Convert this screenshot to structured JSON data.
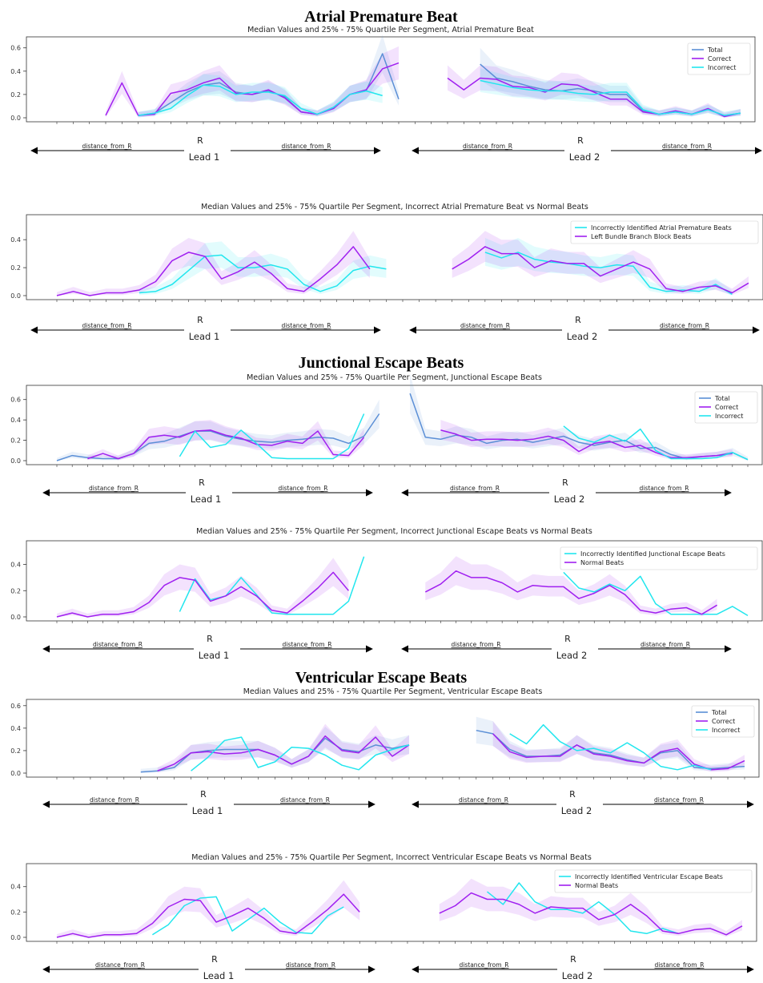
{
  "section_titles": [
    "Atrial Premature Beat",
    "Junctional Escape Beats",
    "Ventricular Escape Beats"
  ],
  "annotation_labels": {
    "r": "R",
    "distance": "distance_from_R",
    "lead1": "Lead 1",
    "lead2": "Lead 2"
  },
  "colors": {
    "total": "#5b8fd6",
    "correct": "#a020f0",
    "incorrect": "#22e6ee",
    "axis": "#333333",
    "arrow": "#000000"
  },
  "chart_data": [
    {
      "type": "line",
      "title": "Median Values and 25% - 75% Quartile Per Segment, Atrial Premature Beat",
      "ylim": [
        0,
        0.66
      ],
      "yticks": [
        "0.0",
        "0.2",
        "0.4",
        "0.6"
      ],
      "legend": "top-right",
      "series": [
        {
          "name": "Total",
          "color": "#5b8fd6",
          "band": true,
          "values": [
            null,
            null,
            null,
            null,
            null,
            0.02,
            0.04,
            0.13,
            0.22,
            0.28,
            0.3,
            0.22,
            0.2,
            0.23,
            0.18,
            0.05,
            0.03,
            0.09,
            0.2,
            0.23,
            0.55,
            0.16,
            null,
            null,
            null,
            null,
            0.46,
            0.34,
            0.31,
            0.27,
            0.24,
            0.23,
            0.25,
            0.23,
            0.2,
            0.2,
            0.06,
            0.03,
            0.05,
            0.03,
            0.07,
            0.02,
            0.04
          ]
        },
        {
          "name": "Correct",
          "color": "#a020f0",
          "band": true,
          "values": [
            null,
            null,
            null,
            0.02,
            0.3,
            0.02,
            0.03,
            0.21,
            0.24,
            0.3,
            0.34,
            0.21,
            0.2,
            0.24,
            0.17,
            0.05,
            0.03,
            0.08,
            0.2,
            0.24,
            0.42,
            0.47,
            null,
            null,
            0.34,
            0.24,
            0.34,
            0.33,
            0.27,
            0.26,
            0.22,
            0.29,
            0.28,
            0.22,
            0.16,
            0.16,
            0.05,
            0.03,
            0.06,
            0.03,
            0.08,
            0.01,
            0.04
          ]
        },
        {
          "name": "Incorrect",
          "color": "#22e6ee",
          "band": true,
          "values": [
            null,
            null,
            null,
            null,
            null,
            0.02,
            0.04,
            0.08,
            0.19,
            0.28,
            0.27,
            0.2,
            0.22,
            0.22,
            0.19,
            0.08,
            0.03,
            0.09,
            0.2,
            0.23,
            0.19,
            null,
            null,
            null,
            null,
            null,
            0.32,
            0.29,
            0.26,
            0.24,
            0.23,
            0.23,
            0.21,
            0.2,
            0.22,
            0.22,
            0.07,
            0.03,
            0.05,
            0.03,
            0.07,
            0.02,
            0.04
          ]
        }
      ]
    },
    {
      "type": "line",
      "title": "Median Values and 25% - 75% Quartile Per Segment, Incorrect Atrial Premature Beat vs Normal Beats",
      "ylim": [
        0,
        0.55
      ],
      "yticks": [
        "0.0",
        "0.2",
        "0.4"
      ],
      "legend": "top-right",
      "series": [
        {
          "name": "Incorrectly Identified Atrial Premature Beats",
          "color": "#22e6ee",
          "band": true,
          "values": [
            null,
            null,
            null,
            null,
            null,
            0.02,
            0.03,
            0.08,
            0.18,
            0.28,
            0.29,
            0.2,
            0.2,
            0.22,
            0.19,
            0.08,
            0.03,
            0.07,
            0.18,
            0.21,
            0.19,
            null,
            null,
            null,
            null,
            null,
            0.31,
            0.27,
            0.31,
            0.26,
            0.24,
            0.23,
            0.21,
            0.2,
            0.22,
            0.21,
            0.06,
            0.03,
            0.04,
            0.03,
            0.08,
            0.01
          ]
        },
        {
          "name": "Left Bundle Branch Block Beats",
          "color": "#a020f0",
          "band": true,
          "values": [
            0.0,
            0.03,
            0.0,
            0.02,
            0.02,
            0.04,
            0.1,
            0.25,
            0.31,
            0.28,
            0.12,
            0.17,
            0.24,
            0.16,
            0.05,
            0.03,
            0.12,
            0.22,
            0.35,
            0.19,
            null,
            null,
            null,
            null,
            0.19,
            0.26,
            0.35,
            0.3,
            0.3,
            0.2,
            0.25,
            0.23,
            0.23,
            0.14,
            0.19,
            0.24,
            0.19,
            0.05,
            0.03,
            0.06,
            0.07,
            0.02,
            0.09
          ]
        }
      ]
    },
    {
      "type": "line",
      "title": "Median Values and 25% - 75% Quartile Per Segment, Junctional Escape Beats",
      "ylim": [
        0,
        0.7
      ],
      "yticks": [
        "0.0",
        "0.2",
        "0.4",
        "0.6"
      ],
      "legend": "top-right",
      "series": [
        {
          "name": "Total",
          "color": "#5b8fd6",
          "band": true,
          "values": [
            0.0,
            0.05,
            0.03,
            0.02,
            0.02,
            0.07,
            0.17,
            0.19,
            0.24,
            0.29,
            0.29,
            0.24,
            0.21,
            0.19,
            0.18,
            0.2,
            0.21,
            0.23,
            0.22,
            0.17,
            0.24,
            0.46,
            null,
            0.66,
            0.23,
            0.21,
            0.25,
            0.23,
            0.17,
            0.2,
            0.21,
            0.18,
            0.21,
            0.24,
            0.18,
            0.15,
            0.18,
            0.2,
            0.12,
            0.13,
            0.06,
            0.02,
            0.04,
            0.05,
            0.08,
            0.01
          ]
        },
        {
          "name": "Correct",
          "color": "#a020f0",
          "band": true,
          "values": [
            null,
            null,
            0.02,
            0.07,
            0.02,
            0.07,
            0.23,
            0.25,
            0.23,
            0.29,
            0.3,
            0.25,
            0.22,
            0.16,
            0.15,
            0.19,
            0.17,
            0.29,
            0.06,
            0.05,
            0.23,
            null,
            null,
            null,
            null,
            0.3,
            0.26,
            0.2,
            0.21,
            0.21,
            0.2,
            0.21,
            0.24,
            0.2,
            0.09,
            0.17,
            0.19,
            0.13,
            0.15,
            0.08,
            0.03,
            0.03,
            0.04,
            0.05,
            0.07
          ]
        },
        {
          "name": "Incorrect",
          "color": "#22e6ee",
          "band": false,
          "values": [
            null,
            null,
            null,
            null,
            null,
            null,
            null,
            null,
            0.04,
            0.29,
            0.13,
            0.16,
            0.3,
            0.17,
            0.03,
            0.02,
            0.02,
            0.02,
            0.02,
            0.12,
            0.46,
            null,
            null,
            null,
            null,
            null,
            null,
            null,
            null,
            null,
            null,
            null,
            null,
            0.34,
            0.22,
            0.18,
            0.25,
            0.19,
            0.31,
            0.1,
            0.02,
            0.02,
            0.02,
            0.03,
            0.08,
            0.01
          ]
        }
      ]
    },
    {
      "type": "line",
      "title": "Median Values and 25% - 75% Quartile Per Segment, Incorrect Junctional Escape Beats vs Normal Beats",
      "ylim": [
        0,
        0.55
      ],
      "yticks": [
        "0.0",
        "0.2",
        "0.4"
      ],
      "legend": "top-right",
      "series": [
        {
          "name": "Incorrectly Identified Junctional Escape Beats",
          "color": "#22e6ee",
          "band": false,
          "values": [
            null,
            null,
            null,
            null,
            null,
            null,
            null,
            null,
            0.04,
            0.29,
            0.13,
            0.16,
            0.3,
            0.17,
            0.03,
            0.02,
            0.02,
            0.02,
            0.02,
            0.12,
            0.46,
            null,
            null,
            null,
            null,
            null,
            null,
            null,
            null,
            null,
            null,
            null,
            null,
            0.34,
            0.22,
            0.19,
            0.25,
            0.2,
            0.31,
            0.1,
            0.02,
            0.02,
            0.02,
            0.02,
            0.08,
            0.01
          ]
        },
        {
          "name": "Normal Beats",
          "color": "#a020f0",
          "band": true,
          "values": [
            0.0,
            0.03,
            0.0,
            0.02,
            0.02,
            0.04,
            0.11,
            0.24,
            0.3,
            0.28,
            0.12,
            0.16,
            0.23,
            0.16,
            0.05,
            0.03,
            0.12,
            0.22,
            0.34,
            0.2,
            null,
            null,
            null,
            null,
            0.19,
            0.25,
            0.35,
            0.3,
            0.3,
            0.26,
            0.19,
            0.24,
            0.23,
            0.23,
            0.14,
            0.18,
            0.24,
            0.17,
            0.05,
            0.03,
            0.06,
            0.07,
            0.02,
            0.09
          ]
        }
      ]
    },
    {
      "type": "line",
      "title": "Median Values and 25% - 75% Quartile Per Segment, Ventricular Escape Beats",
      "ylim": [
        0,
        0.62
      ],
      "yticks": [
        "0.0",
        "0.2",
        "0.4",
        "0.6"
      ],
      "legend": "top-right",
      "series": [
        {
          "name": "Total",
          "color": "#5b8fd6",
          "band": true,
          "values": [
            null,
            null,
            null,
            null,
            null,
            0.01,
            0.02,
            0.05,
            0.18,
            0.2,
            0.21,
            0.21,
            0.21,
            0.16,
            0.08,
            0.15,
            0.31,
            0.21,
            0.19,
            0.25,
            0.22,
            0.25,
            null,
            null,
            null,
            0.38,
            0.35,
            0.21,
            0.15,
            0.15,
            0.16,
            0.25,
            0.18,
            0.16,
            0.12,
            0.09,
            0.18,
            0.2,
            0.05,
            0.04,
            0.05,
            0.06
          ]
        },
        {
          "name": "Correct",
          "color": "#a020f0",
          "band": true,
          "values": [
            null,
            null,
            null,
            null,
            null,
            null,
            0.02,
            0.08,
            0.18,
            0.19,
            0.17,
            0.18,
            0.21,
            0.16,
            0.08,
            0.15,
            0.33,
            0.2,
            0.18,
            0.32,
            0.15,
            0.25,
            null,
            null,
            null,
            null,
            0.35,
            0.19,
            0.14,
            0.15,
            0.15,
            0.25,
            0.17,
            0.15,
            0.11,
            0.09,
            0.19,
            0.22,
            0.08,
            0.03,
            0.04,
            0.11
          ]
        },
        {
          "name": "Incorrect",
          "color": "#22e6ee",
          "band": false,
          "values": [
            null,
            null,
            null,
            null,
            null,
            null,
            null,
            null,
            0.02,
            0.14,
            0.29,
            0.32,
            0.05,
            0.1,
            0.23,
            0.22,
            0.16,
            0.07,
            0.03,
            0.16,
            0.21,
            0.25,
            null,
            null,
            null,
            null,
            null,
            0.35,
            0.26,
            0.43,
            0.28,
            0.2,
            0.22,
            0.18,
            0.27,
            0.18,
            0.06,
            0.03,
            0.07,
            0.03
          ]
        }
      ]
    },
    {
      "type": "line",
      "title": "Median Values and 25% - 75% Quartile Per Segment, Incorrect Ventricular Escape Beats vs Normal Beats",
      "ylim": [
        0,
        0.55
      ],
      "yticks": [
        "0.0",
        "0.2",
        "0.4"
      ],
      "legend": "top-right",
      "series": [
        {
          "name": "Incorrectly Identified Ventricular Escape Beats",
          "color": "#22e6ee",
          "band": false,
          "values": [
            null,
            null,
            null,
            null,
            null,
            null,
            0.02,
            0.1,
            0.25,
            0.31,
            0.32,
            0.05,
            0.14,
            0.23,
            0.12,
            0.04,
            0.03,
            0.17,
            0.24,
            null,
            null,
            null,
            null,
            null,
            null,
            null,
            null,
            0.36,
            0.26,
            0.43,
            0.28,
            0.22,
            0.22,
            0.19,
            0.28,
            0.18,
            0.05,
            0.03,
            0.07,
            0.03
          ]
        },
        {
          "name": "Normal Beats",
          "color": "#a020f0",
          "band": true,
          "values": [
            0.0,
            0.03,
            0.0,
            0.02,
            0.02,
            0.03,
            0.11,
            0.24,
            0.3,
            0.29,
            0.12,
            0.17,
            0.23,
            0.15,
            0.05,
            0.03,
            0.12,
            0.22,
            0.34,
            0.2,
            null,
            null,
            null,
            null,
            0.19,
            0.25,
            0.35,
            0.3,
            0.3,
            0.26,
            0.19,
            0.24,
            0.23,
            0.23,
            0.14,
            0.18,
            0.26,
            0.17,
            0.05,
            0.03,
            0.06,
            0.07,
            0.02,
            0.09
          ]
        }
      ]
    }
  ]
}
